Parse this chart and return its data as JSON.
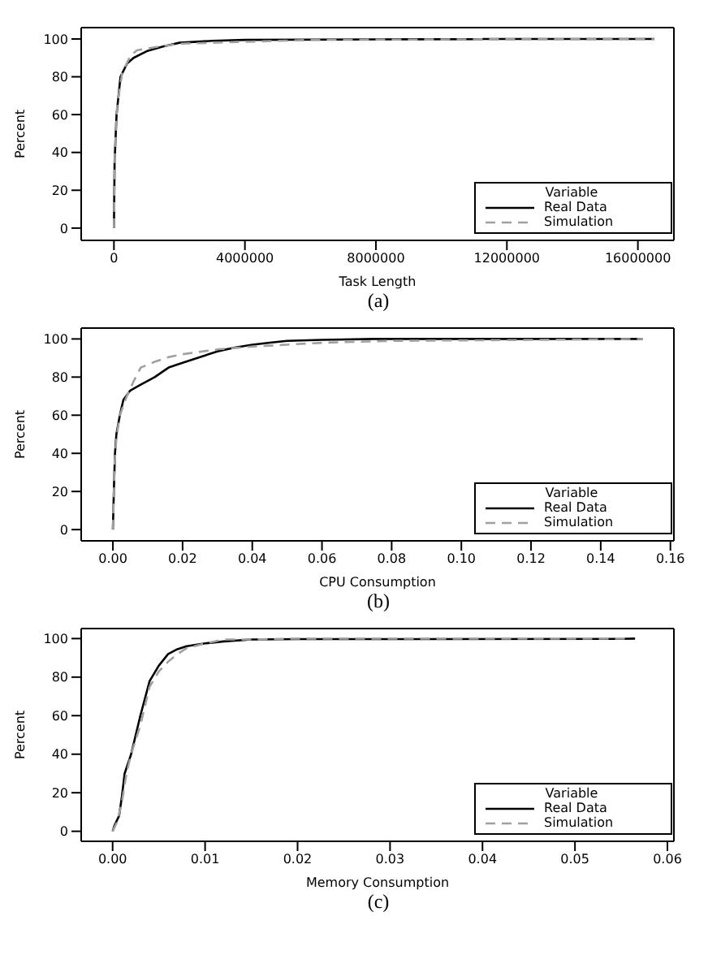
{
  "chart_data": [
    {
      "type": "line",
      "xlabel": "Task Length",
      "ylabel": "Percent",
      "xlim": [
        -1000000,
        17100000
      ],
      "xticks": [
        0,
        4000000,
        8000000,
        12000000,
        16000000
      ],
      "ylim": [
        -6.5,
        106
      ],
      "yticks": [
        0,
        20,
        40,
        60,
        80,
        100
      ],
      "legend": "bottom right",
      "legend_title": "Variable",
      "marker": "none",
      "annotations": [
        "(a)"
      ],
      "series": [
        {
          "name": "Real Data",
          "color": "#000000",
          "line_style": "solid",
          "x": [
            0,
            20000,
            80000,
            200000,
            400000,
            600000,
            1000000,
            1500000,
            2000000,
            3000000,
            4000000,
            8000000,
            11200000,
            11300000,
            16500000
          ],
          "values": [
            0,
            35,
            60,
            80,
            87,
            90,
            93.5,
            96,
            98,
            99,
            99.5,
            99.8,
            99.9,
            100,
            100
          ]
        },
        {
          "name": "Simulation",
          "color": "#a0a0a0",
          "line_style": "dashed",
          "x": [
            0,
            30000,
            100000,
            250000,
            500000,
            700000,
            1200000,
            2000000,
            3000000,
            4000000,
            6000000,
            11000000,
            16500000
          ],
          "values": [
            0,
            40,
            65,
            82,
            91,
            94,
            95.5,
            97.5,
            98,
            98.5,
            99.5,
            99.8,
            100
          ]
        }
      ]
    },
    {
      "type": "line",
      "xlabel": "CPU Consumption",
      "ylabel": "Percent",
      "xlim": [
        -0.0091,
        0.161
      ],
      "xticks": [
        {
          "value": 0,
          "label": "0.00"
        },
        {
          "value": 0.02,
          "label": "0.02"
        },
        {
          "value": 0.04,
          "label": "0.04"
        },
        {
          "value": 0.06,
          "label": "0.06"
        },
        {
          "value": 0.08,
          "label": "0.08"
        },
        {
          "value": 0.1,
          "label": "0.10"
        },
        {
          "value": 0.12,
          "label": "0.12"
        },
        {
          "value": 0.14,
          "label": "0.14"
        },
        {
          "value": 0.16,
          "label": "0.16"
        }
      ],
      "ylim": [
        -5.9,
        105.7
      ],
      "yticks": [
        0,
        20,
        40,
        60,
        80,
        100
      ],
      "legend": "bottom right",
      "legend_title": "Variable",
      "marker": "none",
      "annotations": [
        "(b)"
      ],
      "series": [
        {
          "name": "Real Data",
          "color": "#000000",
          "line_style": "solid",
          "x": [
            0,
            0.0003,
            0.0006,
            0.001,
            0.002,
            0.003,
            0.005,
            0.008,
            0.012,
            0.016,
            0.02,
            0.025,
            0.03,
            0.035,
            0.04,
            0.045,
            0.05,
            0.06,
            0.075,
            0.152
          ],
          "values": [
            0,
            22,
            40,
            50,
            60,
            68,
            73,
            76,
            80,
            85,
            87.5,
            90.5,
            93.5,
            95.5,
            97,
            98,
            99,
            99.5,
            100,
            100
          ]
        },
        {
          "name": "Simulation",
          "color": "#a0a0a0",
          "line_style": "dashed",
          "x": [
            0,
            0.0005,
            0.001,
            0.002,
            0.004,
            0.006,
            0.008,
            0.012,
            0.016,
            0.02,
            0.03,
            0.04,
            0.05,
            0.06,
            0.08,
            0.12,
            0.152
          ],
          "values": [
            0,
            35,
            48,
            60,
            70,
            78,
            85,
            88,
            90.5,
            92,
            94.5,
            96,
            97,
            98,
            99,
            99.5,
            100
          ]
        }
      ]
    },
    {
      "type": "line",
      "xlabel": "Memory Consumption",
      "ylabel": "Percent",
      "xlim": [
        -0.0034,
        0.0607
      ],
      "xticks": [
        {
          "value": 0,
          "label": "0.00"
        },
        {
          "value": 0.01,
          "label": "0.01"
        },
        {
          "value": 0.02,
          "label": "0.02"
        },
        {
          "value": 0.03,
          "label": "0.03"
        },
        {
          "value": 0.04,
          "label": "0.04"
        },
        {
          "value": 0.05,
          "label": "0.05"
        },
        {
          "value": 0.06,
          "label": "0.06"
        }
      ],
      "ylim": [
        -5.2,
        105.2
      ],
      "yticks": [
        0,
        20,
        40,
        60,
        80,
        100
      ],
      "legend": "bottom right",
      "legend_title": "Variable",
      "marker": "none",
      "annotations": [
        "(c)"
      ],
      "series": [
        {
          "name": "Real Data",
          "color": "#000000",
          "line_style": "solid",
          "x": [
            0,
            0.0002,
            0.0007,
            0.001,
            0.0013,
            0.002,
            0.003,
            0.004,
            0.005,
            0.006,
            0.007,
            0.008,
            0.01,
            0.012,
            0.015,
            0.02,
            0.054,
            0.0565
          ],
          "values": [
            0,
            3,
            8,
            18,
            30,
            40,
            60,
            78,
            86,
            92,
            94.5,
            96,
            97.5,
            98.5,
            99.5,
            99.7,
            99.8,
            100
          ]
        },
        {
          "name": "Simulation",
          "color": "#a0a0a0",
          "line_style": "dashed",
          "x": [
            0,
            0.0005,
            0.001,
            0.0015,
            0.002,
            0.003,
            0.004,
            0.005,
            0.006,
            0.007,
            0.008,
            0.01,
            0.012,
            0.015,
            0.02,
            0.056
          ],
          "values": [
            0,
            5,
            15,
            30,
            40,
            55,
            75,
            83,
            88,
            92,
            95,
            97.5,
            99.5,
            99.5,
            100,
            100
          ]
        }
      ]
    }
  ]
}
